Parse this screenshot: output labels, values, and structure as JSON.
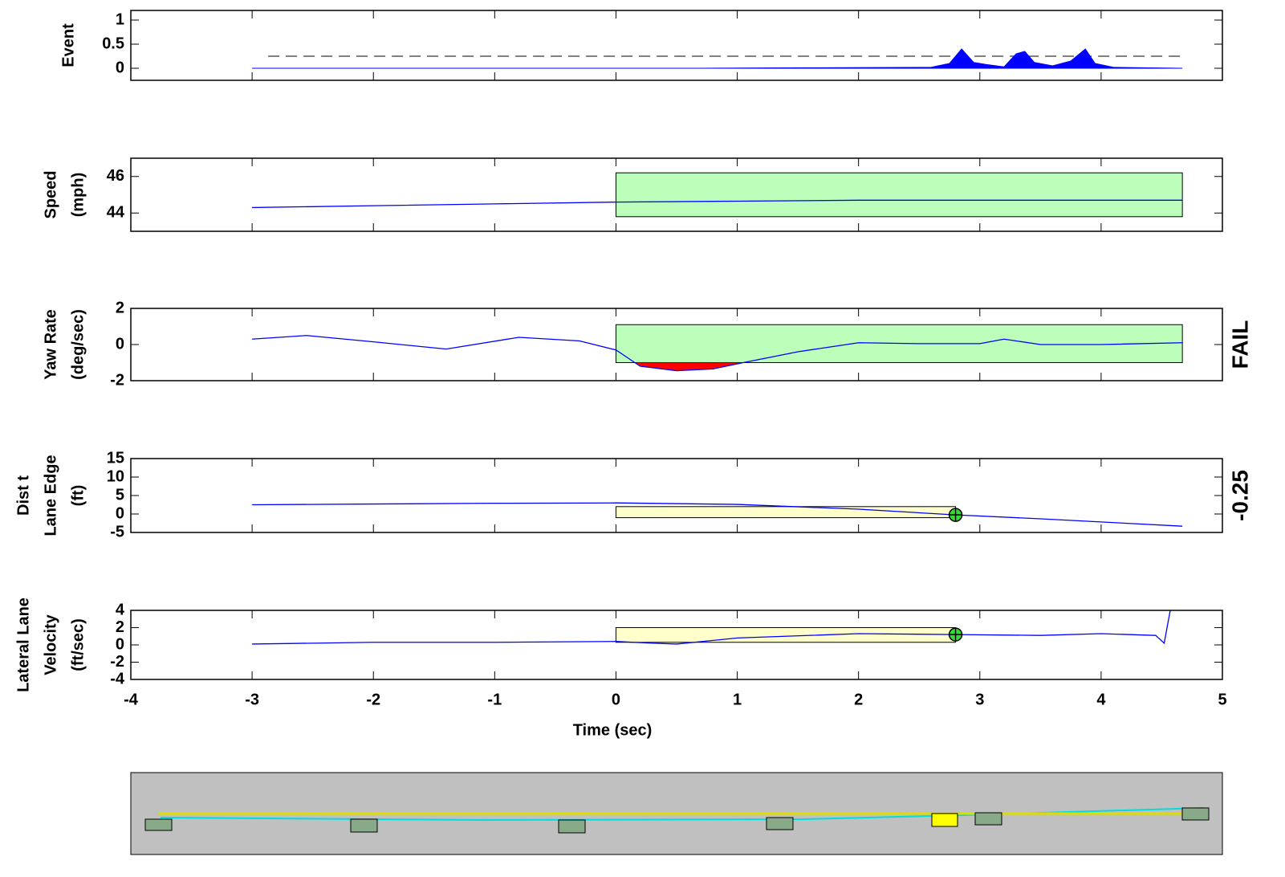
{
  "chart_data": [
    {
      "type": "area",
      "ylabel": [
        "Event"
      ],
      "color": "#0000ff",
      "xlim": [
        -4,
        5
      ],
      "ylim": [
        -0.25,
        1.2
      ],
      "yticks": [
        0,
        0.5,
        1
      ],
      "threshold": 0.25,
      "x": [
        -3,
        0.7,
        1.5,
        2.6,
        2.75,
        2.85,
        2.95,
        3.05,
        3.2,
        3.3,
        3.37,
        3.45,
        3.6,
        3.75,
        3.87,
        3.95,
        4.1,
        4.67
      ],
      "values": [
        0,
        0,
        0.01,
        0.02,
        0.1,
        0.4,
        0.12,
        0.08,
        0.03,
        0.3,
        0.35,
        0.12,
        0.05,
        0.15,
        0.4,
        0.1,
        0.02,
        0
      ]
    },
    {
      "type": "line",
      "ylabel": [
        "Speed",
        "(mph)"
      ],
      "color": "#0000ff",
      "xlim": [
        -4,
        5
      ],
      "ylim": [
        43,
        47
      ],
      "yticks": [
        44,
        46
      ],
      "band": {
        "x": [
          0,
          4.67
        ],
        "y": [
          43.8,
          46.2
        ],
        "color": "#bbffbb"
      },
      "x": [
        -3,
        -2,
        -1,
        0,
        1,
        2,
        3,
        4,
        4.67
      ],
      "values": [
        44.3,
        44.4,
        44.5,
        44.6,
        44.65,
        44.7,
        44.7,
        44.7,
        44.7
      ]
    },
    {
      "type": "line",
      "ylabel": [
        "Yaw Rate",
        "(deg/sec)"
      ],
      "color": "#0000ff",
      "xlim": [
        -4,
        5
      ],
      "ylim": [
        -2,
        2
      ],
      "yticks": [
        -2,
        0,
        2
      ],
      "band": {
        "x": [
          0,
          4.67
        ],
        "y": [
          -1,
          1.1
        ],
        "color": "#bbffbb"
      },
      "exceed_color": "#ff0000",
      "status": "FAIL",
      "status_color": "#ff0000",
      "x": [
        -3,
        -2.55,
        -2,
        -1.4,
        -0.8,
        -0.3,
        0,
        0.2,
        0.5,
        0.8,
        1.05,
        1.5,
        2,
        2.5,
        3,
        3.2,
        3.5,
        4,
        4.67
      ],
      "values": [
        0.3,
        0.5,
        0.15,
        -0.25,
        0.4,
        0.2,
        -0.3,
        -1.2,
        -1.45,
        -1.35,
        -1.0,
        -0.4,
        0.1,
        0.05,
        0.05,
        0.3,
        0.0,
        0.0,
        0.1
      ]
    },
    {
      "type": "line",
      "ylabel": [
        "Dist t",
        "Lane Edge",
        "(ft)"
      ],
      "color": "#0000ff",
      "xlim": [
        -4,
        5
      ],
      "ylim": [
        -5,
        15
      ],
      "yticks": [
        -5,
        0,
        5,
        10,
        15
      ],
      "band": {
        "x": [
          0,
          2.8
        ],
        "y": [
          -1,
          2
        ],
        "color": "#ffffcc"
      },
      "marker": {
        "x": 2.8,
        "y": -0.25,
        "label": "-0.25",
        "color": "#33dd33"
      },
      "label_color": "#008000",
      "x": [
        -3,
        -2,
        -1,
        0,
        1,
        2,
        2.8,
        3.5,
        4.67
      ],
      "values": [
        2.5,
        2.7,
        2.9,
        3.0,
        2.6,
        1.3,
        -0.25,
        -1.3,
        -3.3
      ]
    },
    {
      "type": "line",
      "ylabel": [
        "Lateral Lane",
        "Velocity",
        "(ft/sec)"
      ],
      "color": "#0000ff",
      "xlim": [
        -4,
        5
      ],
      "ylim": [
        -4,
        4
      ],
      "yticks": [
        -4,
        -2,
        0,
        2,
        4
      ],
      "band": {
        "x": [
          0,
          2.8
        ],
        "y": [
          0.3,
          2
        ],
        "color": "#ffffcc"
      },
      "marker": {
        "x": 2.8,
        "y": 1.2,
        "color": "#33dd33"
      },
      "xlabel": "Time (sec)",
      "xticks": [
        -4,
        -3,
        -2,
        -1,
        0,
        1,
        2,
        3,
        4,
        5
      ],
      "x": [
        -3,
        -2,
        -1,
        0,
        0.3,
        0.5,
        1,
        2,
        2.8,
        3.5,
        4,
        4.45,
        4.52,
        4.57
      ],
      "values": [
        0.1,
        0.3,
        0.3,
        0.4,
        0.2,
        0.1,
        0.8,
        1.3,
        1.2,
        1.1,
        1.3,
        1.1,
        0.2,
        4
      ]
    }
  ]
}
